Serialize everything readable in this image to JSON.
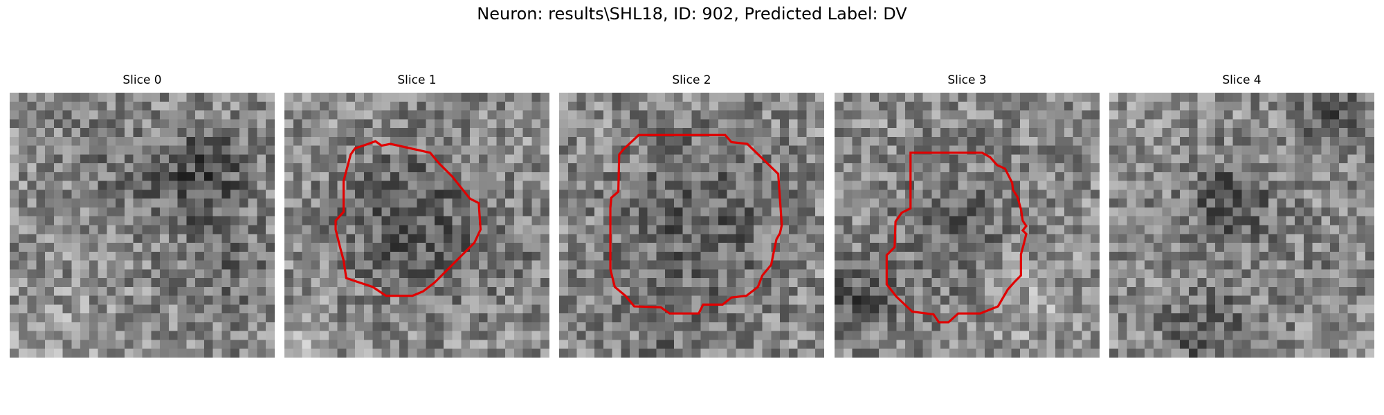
{
  "figure": {
    "title": "Neuron: results\\SHL18, ID: 902, Predicted Label: DV",
    "contour_color": "#e00000"
  },
  "panels": [
    {
      "title": "Slice 0",
      "has_contour": false
    },
    {
      "title": "Slice 1",
      "has_contour": true
    },
    {
      "title": "Slice 2",
      "has_contour": true
    },
    {
      "title": "Slice 3",
      "has_contour": true
    },
    {
      "title": "Slice 4",
      "has_contour": false
    }
  ]
}
